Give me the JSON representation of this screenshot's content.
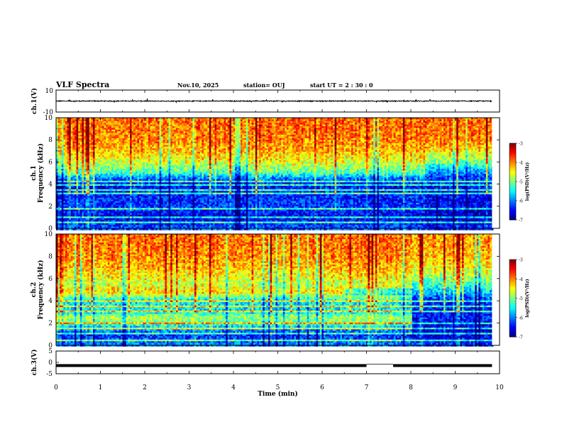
{
  "header": {
    "title": "VLF Spectra",
    "date": "Nov.10, 2025",
    "station": "station= OUJ",
    "start_ut": "start  UT  =   2  : 30 : 0"
  },
  "chart_data": [
    {
      "type": "line",
      "panel": "ch1-waveform",
      "ylabel": "ch.1(V)",
      "ylim": [
        -10,
        10
      ],
      "y_ticks": [
        "10",
        "-10"
      ],
      "x_range_min": [
        0,
        9.83
      ],
      "baseline": 0,
      "note_values": "noisy trace around 0 V with spikes up to about ±2 V"
    },
    {
      "type": "heatmap",
      "panel": "ch1-spectrogram",
      "ylabel_line1": "ch.1",
      "ylabel_line2": "Frequency  (kHz)",
      "ylim_khz": [
        0,
        10
      ],
      "y_ticks": [
        "0",
        "2",
        "4",
        "6",
        "8",
        "10"
      ],
      "x_range_min": [
        0,
        9.83
      ],
      "colorbar": {
        "label": "log(PSD)(V²/Hz)",
        "range": [
          -7,
          -3
        ],
        "ticks": [
          "-3",
          "-4",
          "-5",
          "-6",
          "-7"
        ]
      },
      "profile_khz": [
        0,
        1,
        2,
        3,
        4,
        4.6,
        5,
        5.5,
        6,
        7,
        8,
        9,
        10
      ],
      "profile_logpsd": [
        -6.2,
        -6.6,
        -6.3,
        -6.4,
        -6.6,
        -6.0,
        -5.3,
        -5.0,
        -4.7,
        -4.3,
        -4.1,
        -4.0,
        -4.0
      ],
      "time_change_min": 8.3,
      "late_profile_logpsd": [
        -6.4,
        -6.8,
        -6.6,
        -6.5,
        -6.6,
        -6.3,
        -6.0,
        -5.6,
        -5.1,
        -4.5,
        -4.1,
        -4.0,
        -4.0
      ],
      "hum_lines_khz": [
        0.5,
        1.0,
        1.8,
        2.15,
        2.45,
        3.1,
        3.5,
        3.9,
        4.2
      ]
    },
    {
      "type": "heatmap",
      "panel": "ch2-spectrogram",
      "ylabel_line1": "ch.2",
      "ylabel_line2": "Frequency  (kHz)",
      "ylim_khz": [
        0,
        10
      ],
      "y_ticks": [
        "0",
        "2",
        "4",
        "6",
        "8",
        "10"
      ],
      "x_range_min": [
        0,
        9.83
      ],
      "colorbar": {
        "label": "log(PSD)(V²/Hz)",
        "range": [
          -7,
          -3
        ],
        "ticks": [
          "-3",
          "-4",
          "-5",
          "-6",
          "-7"
        ]
      },
      "profile_khz": [
        0,
        1,
        2,
        2.5,
        3,
        4,
        4.8,
        5.5,
        6,
        7,
        8,
        9,
        10
      ],
      "profile_logpsd": [
        -6.0,
        -6.4,
        -5.2,
        -4.8,
        -5.6,
        -5.6,
        -4.4,
        -4.8,
        -4.6,
        -4.3,
        -4.1,
        -4.0,
        -4.0
      ],
      "time_change_min": 8.0,
      "late_profile_logpsd": [
        -6.3,
        -6.7,
        -6.6,
        -6.4,
        -6.5,
        -6.5,
        -5.8,
        -5.3,
        -5.0,
        -4.6,
        -4.3,
        -4.2,
        -4.2
      ],
      "band_end_min": {
        "5khz_band": 6.5,
        "2_5khz_band": 8.0
      },
      "hum_lines_khz": [
        0.5,
        1.0,
        1.5,
        2.0,
        2.5,
        3.0,
        3.5,
        4.0
      ]
    },
    {
      "type": "line",
      "panel": "ch3-signal",
      "ylabel": "ch.3(V)",
      "ylim": [
        -5,
        5
      ],
      "y_ticks": [
        "5",
        "0",
        "-5"
      ],
      "x_range_min": [
        0,
        9.83
      ],
      "level": -1.4,
      "gaps_min": [
        [
          7.0,
          7.6
        ]
      ]
    }
  ],
  "x_axis": {
    "label": "Time  (min)",
    "range": [
      0,
      10
    ],
    "ticks": [
      "0",
      "1",
      "2",
      "3",
      "4",
      "5",
      "6",
      "7",
      "8",
      "9",
      "10"
    ]
  }
}
